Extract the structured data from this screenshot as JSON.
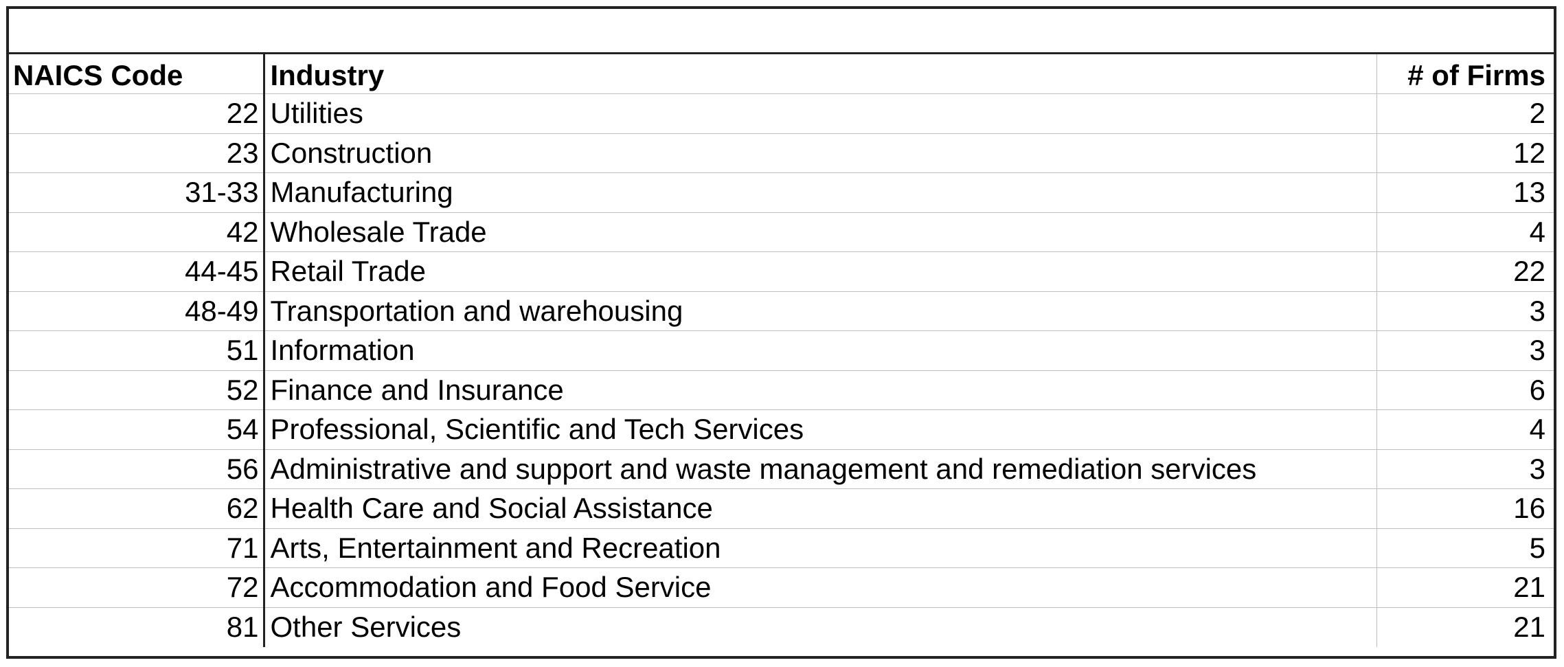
{
  "table": {
    "title": "",
    "headers": {
      "code": "NAICS Code",
      "industry": "Industry",
      "firms": "# of Firms"
    },
    "rows": [
      {
        "code": "22",
        "industry": "Utilities",
        "firms": "2"
      },
      {
        "code": "23",
        "industry": "Construction",
        "firms": "12"
      },
      {
        "code": "31-33",
        "industry": "Manufacturing",
        "firms": "13"
      },
      {
        "code": "42",
        "industry": "Wholesale Trade",
        "firms": "4"
      },
      {
        "code": "44-45",
        "industry": "Retail Trade",
        "firms": "22"
      },
      {
        "code": "48-49",
        "industry": "Transportation and warehousing",
        "firms": "3"
      },
      {
        "code": "51",
        "industry": "Information",
        "firms": "3"
      },
      {
        "code": "52",
        "industry": "Finance and Insurance",
        "firms": "6"
      },
      {
        "code": "54",
        "industry": "Professional, Scientific and Tech Services",
        "firms": "4"
      },
      {
        "code": "56",
        "industry": "Administrative and support and waste management and remediation services",
        "firms": "3"
      },
      {
        "code": "62",
        "industry": "Health Care and Social Assistance",
        "firms": "16"
      },
      {
        "code": "71",
        "industry": "Arts, Entertainment and Recreation",
        "firms": "5"
      },
      {
        "code": "72",
        "industry": "Accommodation and Food Service",
        "firms": "21"
      },
      {
        "code": "81",
        "industry": "Other Services",
        "firms": "21"
      }
    ]
  }
}
